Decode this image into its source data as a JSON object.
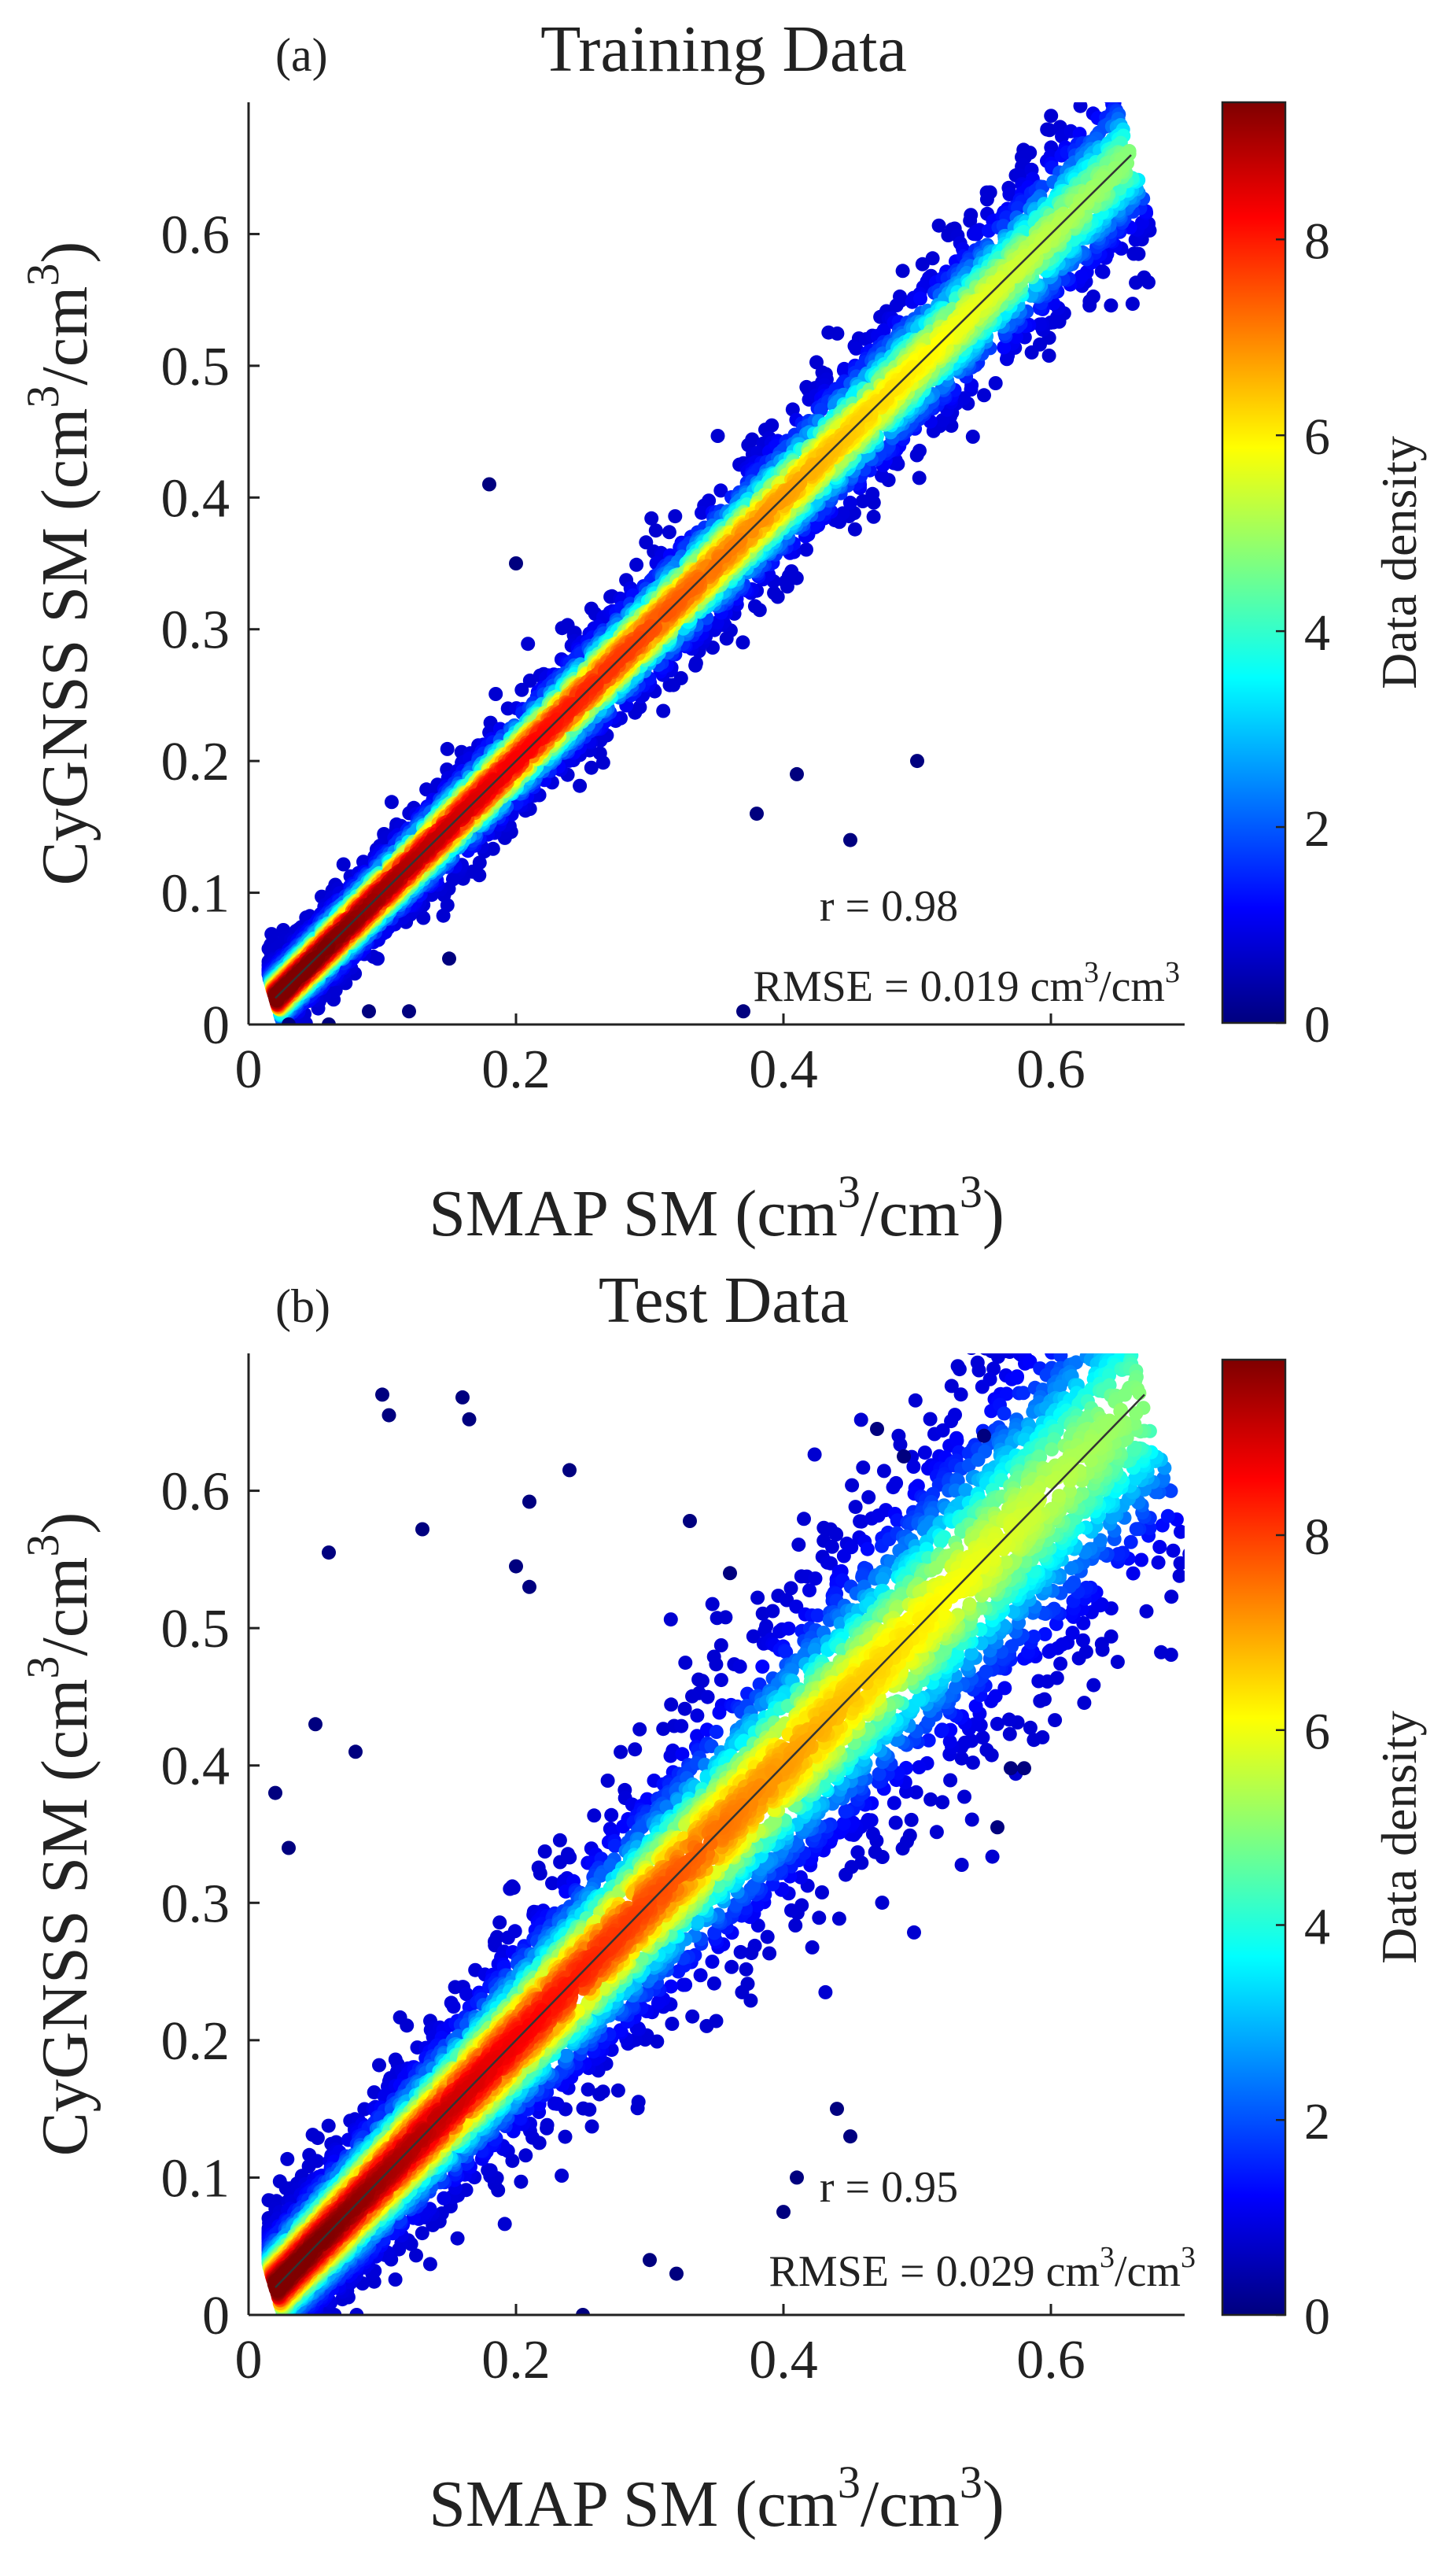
{
  "colormap": [
    "#00007f",
    "#0000ff",
    "#007fff",
    "#00ffff",
    "#7fff7f",
    "#ffff00",
    "#ff7f00",
    "#ff0000",
    "#7f0000"
  ],
  "chart_data": [
    {
      "type": "scatter",
      "panel_label": "(a)",
      "title": "Training Data",
      "xlabel": "SMAP SM (cm",
      "xlabel_sup": "3",
      "xlabel_mid": "/cm",
      "xlabel_sup2": "3",
      "xlabel_end": ")",
      "ylabel": "CyGNSS SM (cm",
      "ylabel_sup": "3",
      "ylabel_mid": "/cm",
      "ylabel_sup2": "3",
      "ylabel_end": ")",
      "xlim": [
        0,
        0.7
      ],
      "ylim": [
        0,
        0.7
      ],
      "xticks": [
        0,
        0.2,
        0.4,
        0.6
      ],
      "yticks": [
        0,
        0.1,
        0.2,
        0.3,
        0.4,
        0.5,
        0.6
      ],
      "xtick_labels": [
        "0",
        "0.2",
        "0.4",
        "0.6"
      ],
      "ytick_labels": [
        "0",
        "0.1",
        "0.2",
        "0.3",
        "0.4",
        "0.5",
        "0.6"
      ],
      "reference_line": {
        "x": [
          0.02,
          0.66
        ],
        "y": [
          0.02,
          0.66
        ]
      },
      "r_text": "r = 0.98",
      "rmse_text": "RMSE = 0.019 cm",
      "rmse_sup": "3",
      "rmse_mid": "/cm",
      "rmse_sup2": "3",
      "colorbar_label": "Data density",
      "colorbar_range": [
        0,
        9.4
      ],
      "colorbar_ticks": [
        0,
        2,
        4,
        6,
        8
      ],
      "colorbar_tick_labels": [
        "0",
        "2",
        "4",
        "6",
        "8"
      ],
      "cloud": {
        "x_range": [
          0.02,
          0.66
        ],
        "spread": 0.035,
        "spread_growth": 0.06,
        "count": 6500,
        "seed": 11
      },
      "outliers": [
        [
          0.37,
          0.01
        ],
        [
          0.03,
          0.0
        ],
        [
          0.45,
          0.14
        ],
        [
          0.09,
          0.01
        ],
        [
          0.06,
          0.0
        ],
        [
          0.5,
          0.2
        ],
        [
          0.18,
          0.41
        ],
        [
          0.38,
          0.16
        ],
        [
          0.41,
          0.19
        ],
        [
          0.2,
          0.35
        ],
        [
          0.15,
          0.05
        ],
        [
          0.12,
          0.01
        ]
      ]
    },
    {
      "type": "scatter",
      "panel_label": "(b)",
      "title": "Test Data",
      "xlabel": "SMAP SM (cm",
      "xlabel_sup": "3",
      "xlabel_mid": "/cm",
      "xlabel_sup2": "3",
      "xlabel_end": ")",
      "ylabel": "CyGNSS SM (cm",
      "ylabel_sup": "3",
      "ylabel_mid": "/cm",
      "ylabel_sup2": "3",
      "ylabel_end": ")",
      "xlim": [
        0,
        0.7
      ],
      "ylim": [
        0,
        0.7
      ],
      "xticks": [
        0,
        0.2,
        0.4,
        0.6
      ],
      "yticks": [
        0,
        0.1,
        0.2,
        0.3,
        0.4,
        0.5,
        0.6
      ],
      "xtick_labels": [
        "0",
        "0.2",
        "0.4",
        "0.6"
      ],
      "ytick_labels": [
        "0",
        "0.1",
        "0.2",
        "0.3",
        "0.4",
        "0.5",
        "0.6"
      ],
      "reference_line": {
        "x": [
          0.02,
          0.67
        ],
        "y": [
          0.02,
          0.67
        ]
      },
      "r_text": "r = 0.95",
      "rmse_text": "RMSE = 0.029 cm",
      "rmse_sup": "3",
      "rmse_mid": "/cm",
      "rmse_sup2": "3",
      "colorbar_label": "Data density",
      "colorbar_range": [
        0,
        9.8
      ],
      "colorbar_ticks": [
        0,
        2,
        4,
        6,
        8
      ],
      "colorbar_tick_labels": [
        "0",
        "2",
        "4",
        "6",
        "8"
      ],
      "cloud": {
        "x_range": [
          0.02,
          0.67
        ],
        "spread": 0.055,
        "spread_growth": 0.09,
        "count": 7500,
        "seed": 23
      },
      "outliers": [
        [
          0.1,
          0.67
        ],
        [
          0.105,
          0.655
        ],
        [
          0.16,
          0.668
        ],
        [
          0.165,
          0.652
        ],
        [
          0.06,
          0.555
        ],
        [
          0.13,
          0.572
        ],
        [
          0.24,
          0.615
        ],
        [
          0.21,
          0.592
        ],
        [
          0.2,
          0.545
        ],
        [
          0.21,
          0.53
        ],
        [
          0.25,
          0.0
        ],
        [
          0.32,
          0.03
        ],
        [
          0.44,
          0.15
        ],
        [
          0.45,
          0.13
        ],
        [
          0.41,
          0.1
        ],
        [
          0.4,
          0.075
        ],
        [
          0.3,
          0.04
        ],
        [
          0.55,
          0.64
        ],
        [
          0.47,
          0.645
        ],
        [
          0.49,
          0.625
        ],
        [
          0.58,
          0.398
        ],
        [
          0.57,
          0.398
        ],
        [
          0.56,
          0.355
        ],
        [
          0.05,
          0.43
        ],
        [
          0.08,
          0.41
        ],
        [
          0.02,
          0.38
        ],
        [
          0.03,
          0.34
        ],
        [
          0.33,
          0.578
        ],
        [
          0.36,
          0.54
        ]
      ]
    }
  ]
}
